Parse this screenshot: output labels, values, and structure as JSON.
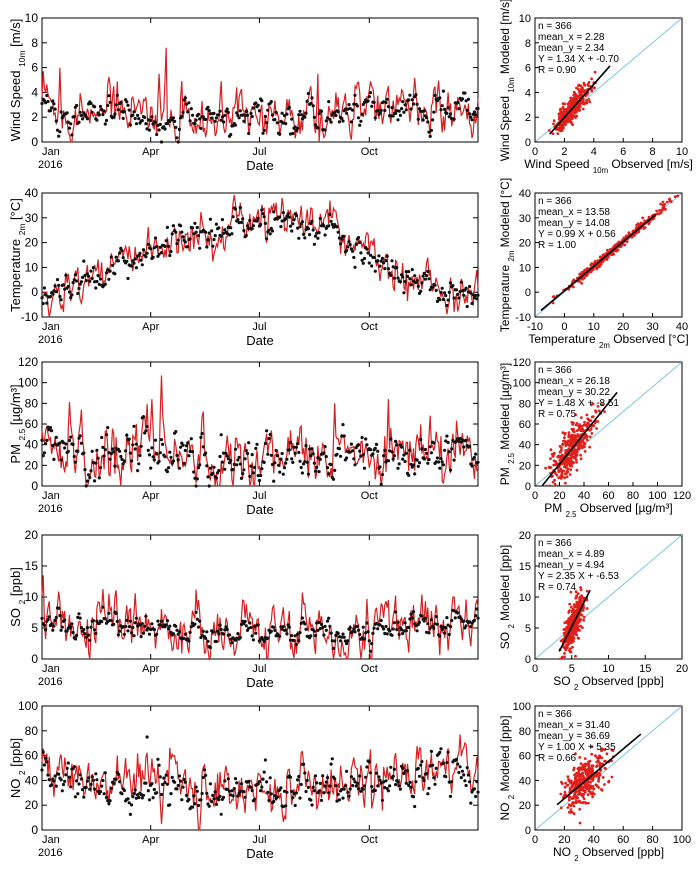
{
  "figure": {
    "year_label": "2016",
    "time_axis_label": "Date",
    "month_ticks": [
      "Jan",
      "Apr",
      "Jul",
      "Oct"
    ],
    "month_days": [
      0,
      91,
      182,
      274
    ],
    "n_days": 366
  },
  "colors": {
    "model": "#d62020",
    "observed": "#111111",
    "one_to_one": "#7ec8d8",
    "fit": "#000000"
  },
  "chart_data": [
    {
      "type": "line",
      "id": "wind-ts",
      "ylabel_main": "Wind Speed",
      "ylabel_sub": "10m",
      "ylabel_unit": "[m/s]",
      "ylim": [
        0,
        10
      ],
      "yticks": [
        0,
        2,
        4,
        6,
        8,
        10
      ],
      "series": [
        {
          "name": "Modeled",
          "style": "line",
          "mean": 2.34,
          "amp": 1.0,
          "spikes": [
            [
              15,
              6.0
            ],
            [
              60,
              4.5
            ],
            [
              104,
              7.6
            ],
            [
              98,
              5.5
            ],
            [
              150,
              4.9
            ],
            [
              231,
              5.5
            ],
            [
              290,
              4.5
            ],
            [
              340,
              4.0
            ]
          ]
        },
        {
          "name": "Observed",
          "style": "dots",
          "mean": 2.28,
          "amp": 0.7,
          "spikes": []
        }
      ],
      "seasonal": [
        2.6,
        2.3,
        2.4,
        2.2,
        2.1,
        2.0,
        2.0,
        2.1,
        2.2,
        2.3,
        2.4,
        2.5
      ]
    },
    {
      "type": "scatter",
      "id": "wind-sc",
      "xlabel_main": "Wind Speed",
      "xlabel_sub": "10m",
      "xlabel_unit": "Observed [m/s]",
      "ylabel_main": "Wind Speed",
      "ylabel_sub": "10m",
      "ylabel_unit": "Modeled [m/s]",
      "xlim": [
        0,
        10
      ],
      "ylim": [
        0,
        10
      ],
      "ticks": [
        0,
        2,
        4,
        6,
        8,
        10
      ],
      "stats": [
        "n = 366",
        "mean_x = 2.28",
        "mean_y = 2.34",
        "Y = 1.34 X + -0.70",
        "R = 0.90"
      ],
      "slope": 1.34,
      "intercept": -0.7,
      "fit_x": [
        1.0,
        5.1
      ],
      "x_center": 2.28,
      "x_spread": 0.8,
      "noise": 0.5
    },
    {
      "type": "line",
      "id": "temp-ts",
      "ylabel_main": "Temperature",
      "ylabel_sub": "2m",
      "ylabel_unit": "[°C]",
      "ylim": [
        -10,
        40
      ],
      "yticks": [
        -10,
        0,
        10,
        20,
        30,
        40
      ],
      "series": [
        {
          "name": "Modeled",
          "style": "line",
          "mean": 14.08,
          "amp": 4.0,
          "spikes": [
            [
              6,
              -10
            ],
            [
              18,
              -8
            ],
            [
              30,
              10
            ],
            [
              50,
              12
            ]
          ]
        },
        {
          "name": "Observed",
          "style": "dots",
          "mean": 13.58,
          "amp": 3.2,
          "spikes": []
        }
      ],
      "seasonal": [
        -2,
        3,
        10,
        17,
        22,
        26,
        30,
        29,
        23,
        15,
        6,
        0
      ]
    },
    {
      "type": "scatter",
      "id": "temp-sc",
      "xlabel_main": "Temperature",
      "xlabel_sub": "2m",
      "xlabel_unit": "Observed [°C]",
      "ylabel_main": "Temperature",
      "ylabel_sub": "2m",
      "ylabel_unit": "Modeled [°C]",
      "xlim": [
        -10,
        40
      ],
      "ylim": [
        -10,
        40
      ],
      "ticks": [
        -10,
        0,
        10,
        20,
        30,
        40
      ],
      "stats": [
        "n = 366",
        "mean_x = 13.58",
        "mean_y = 14.08",
        "Y = 0.99 X + 0.56",
        "R = 1.00"
      ],
      "slope": 0.99,
      "intercept": 0.56,
      "fit_x": [
        -8,
        31
      ],
      "x_center": 13.58,
      "x_spread": 11,
      "noise": 0.9
    },
    {
      "type": "line",
      "id": "pm-ts",
      "ylabel_main": "PM",
      "ylabel_sub": "2.5",
      "ylabel_unit": "[µg/m³]",
      "ylim": [
        0,
        120
      ],
      "yticks": [
        0,
        20,
        40,
        60,
        80,
        100,
        120
      ],
      "series": [
        {
          "name": "Modeled",
          "style": "line",
          "mean": 30.22,
          "amp": 15,
          "spikes": [
            [
              100,
              107
            ],
            [
              92,
              84
            ],
            [
              135,
              72
            ],
            [
              245,
              80
            ],
            [
              290,
              84
            ],
            [
              325,
              68
            ]
          ]
        },
        {
          "name": "Observed",
          "style": "dots",
          "mean": 26.18,
          "amp": 10,
          "spikes": [
            [
              5,
              57
            ],
            [
              12,
              47
            ]
          ]
        }
      ],
      "seasonal": [
        32,
        30,
        30,
        34,
        30,
        25,
        22,
        22,
        26,
        30,
        32,
        32
      ]
    },
    {
      "type": "scatter",
      "id": "pm-sc",
      "xlabel_main": "PM",
      "xlabel_sub": "2.5",
      "xlabel_unit": "Observed [µg/m³]",
      "ylabel_main": "PM",
      "ylabel_sub": "2.5",
      "ylabel_unit": "Modeled [µg/m³]",
      "xlim": [
        0,
        120
      ],
      "ylim": [
        0,
        120
      ],
      "ticks": [
        0,
        20,
        40,
        60,
        80,
        100,
        120
      ],
      "stats": [
        "n = 366",
        "mean_x = 26.18",
        "mean_y = 30.22",
        "Y = 1.48 X + -8.51",
        "R = 0.75"
      ],
      "slope": 1.48,
      "intercept": -8.51,
      "fit_x": [
        6,
        67
      ],
      "x_center": 26.18,
      "x_spread": 11,
      "noise": 11
    },
    {
      "type": "line",
      "id": "so2-ts",
      "ylabel_main": "SO",
      "ylabel_sub": "2",
      "ylabel_unit": "[ppb]",
      "ylim": [
        0,
        20
      ],
      "yticks": [
        0,
        5,
        10,
        15,
        20
      ],
      "series": [
        {
          "name": "Modeled",
          "style": "line",
          "mean": 4.94,
          "amp": 2.2,
          "spikes": [
            [
              1,
              13.5
            ],
            [
              78,
              10.6
            ],
            [
              131,
              9.5
            ],
            [
              290,
              9.5
            ],
            [
              345,
              10.0
            ],
            [
              355,
              9.6
            ]
          ]
        },
        {
          "name": "Observed",
          "style": "dots",
          "mean": 4.89,
          "amp": 0.8,
          "spikes": []
        }
      ],
      "seasonal": [
        6.0,
        5.5,
        5.2,
        5.0,
        4.5,
        4.2,
        4.2,
        4.4,
        4.6,
        4.8,
        5.0,
        5.3
      ]
    },
    {
      "type": "scatter",
      "id": "so2-sc",
      "xlabel_main": "SO",
      "xlabel_sub": "2",
      "xlabel_unit": "Observed [ppb]",
      "ylabel_main": "SO",
      "ylabel_sub": "2",
      "ylabel_unit": "Modeled [ppb]",
      "xlim": [
        0,
        20
      ],
      "ylim": [
        0,
        20
      ],
      "ticks": [
        0,
        5,
        10,
        15,
        20
      ],
      "stats": [
        "n = 366",
        "mean_x = 4.89",
        "mean_y = 4.94",
        "Y = 2.35 X + -6.53",
        "R = 0.74"
      ],
      "slope": 2.35,
      "intercept": -6.53,
      "fit_x": [
        3.3,
        7.5
      ],
      "x_center": 4.89,
      "x_spread": 0.9,
      "noise": 1.6
    },
    {
      "type": "line",
      "id": "no2-ts",
      "ylabel_main": "NO",
      "ylabel_sub": "2",
      "ylabel_unit": "[ppb]",
      "ylim": [
        0,
        100
      ],
      "yticks": [
        0,
        20,
        40,
        60,
        80,
        100
      ],
      "series": [
        {
          "name": "Modeled",
          "style": "line",
          "mean": 36.69,
          "amp": 11,
          "spikes": [
            [
              70,
              58
            ],
            [
              275,
              65
            ],
            [
              296,
              62
            ],
            [
              340,
              66
            ]
          ]
        },
        {
          "name": "Observed",
          "style": "dots",
          "mean": 31.4,
          "amp": 9,
          "spikes": [
            [
              88,
              75
            ]
          ]
        }
      ],
      "seasonal": [
        40,
        38,
        36,
        34,
        32,
        28,
        30,
        32,
        34,
        37,
        40,
        42
      ]
    },
    {
      "type": "scatter",
      "id": "no2-sc",
      "xlabel_main": "NO",
      "xlabel_sub": "2",
      "xlabel_unit": "Observed [ppb]",
      "ylabel_main": "NO",
      "ylabel_sub": "2",
      "ylabel_unit": "Modeled [ppb]",
      "xlim": [
        0,
        100
      ],
      "ylim": [
        0,
        100
      ],
      "ticks": [
        0,
        20,
        40,
        60,
        80,
        100
      ],
      "stats": [
        "n = 366",
        "mean_x = 31.40",
        "mean_y = 36.69",
        "Y = 1.00 X + 5.35",
        "R = 0.66"
      ],
      "slope": 1.0,
      "intercept": 5.35,
      "fit_x": [
        15,
        72
      ],
      "x_center": 31.4,
      "x_spread": 9,
      "noise": 9
    }
  ]
}
